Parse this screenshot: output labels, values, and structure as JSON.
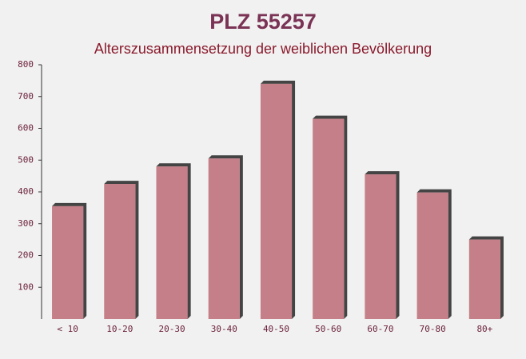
{
  "chart_data": {
    "type": "bar",
    "title": "PLZ 55257",
    "subtitle": "Alterszusammensetzung der weiblichen Bevölkerung",
    "categories": [
      "< 10",
      "10-20",
      "20-30",
      "30-40",
      "40-50",
      "50-60",
      "60-70",
      "70-80",
      "80+"
    ],
    "values": [
      355,
      425,
      480,
      505,
      740,
      630,
      455,
      398,
      250
    ],
    "color": "#c0727c",
    "ylim": [
      0,
      800
    ],
    "yticks": [
      100,
      200,
      300,
      400,
      500,
      600,
      700,
      800
    ]
  }
}
